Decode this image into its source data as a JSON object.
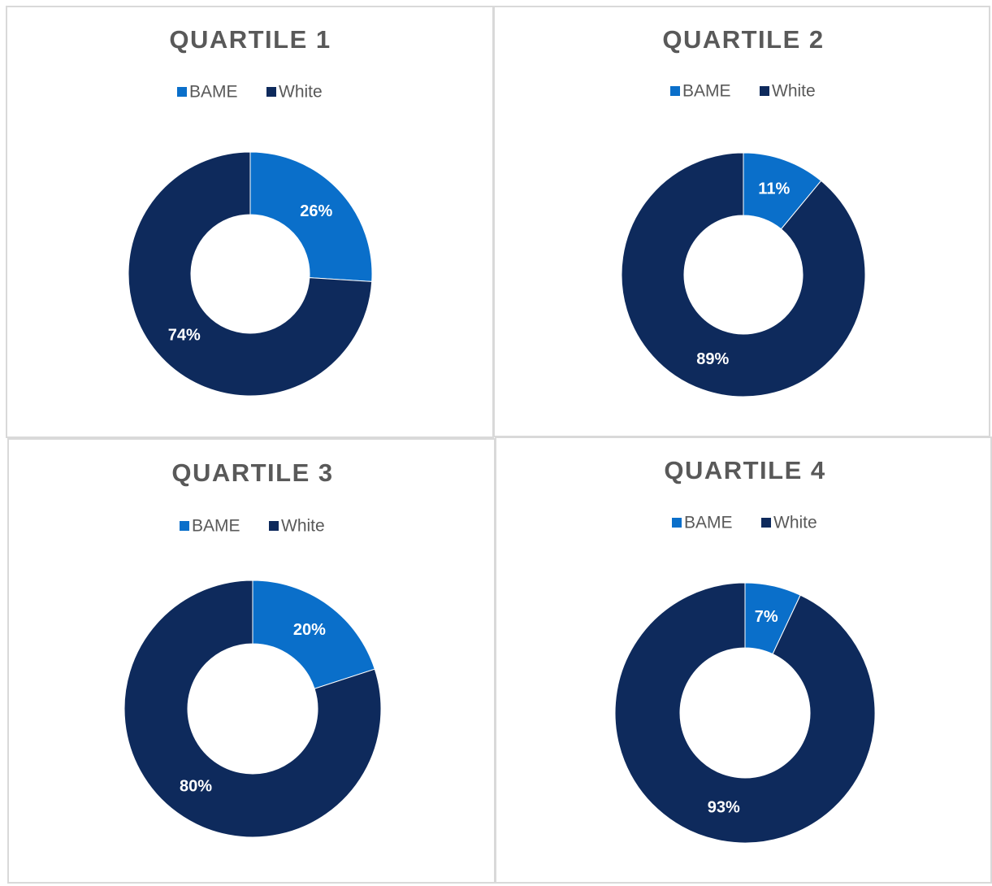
{
  "chart_data": [
    {
      "type": "pie",
      "donut": true,
      "title": "QUARTILE 1",
      "categories": [
        "BAME",
        "White"
      ],
      "values": [
        26,
        74
      ],
      "value_labels": [
        "26%",
        "74%"
      ],
      "colors": [
        "#0a6fca",
        "#0e2a5c"
      ],
      "legend": "top"
    },
    {
      "type": "pie",
      "donut": true,
      "title": "QUARTILE 2",
      "categories": [
        "BAME",
        "White"
      ],
      "values": [
        11,
        89
      ],
      "value_labels": [
        "11%",
        "89%"
      ],
      "colors": [
        "#0a6fca",
        "#0e2a5c"
      ],
      "legend": "top"
    },
    {
      "type": "pie",
      "donut": true,
      "title": "QUARTILE 3",
      "categories": [
        "BAME",
        "White"
      ],
      "values": [
        20,
        80
      ],
      "value_labels": [
        "20%",
        "80%"
      ],
      "colors": [
        "#0a6fca",
        "#0e2a5c"
      ],
      "legend": "top"
    },
    {
      "type": "pie",
      "donut": true,
      "title": "QUARTILE 4",
      "categories": [
        "BAME",
        "White"
      ],
      "values": [
        7,
        93
      ],
      "value_labels": [
        "7%",
        "93%"
      ],
      "colors": [
        "#0a6fca",
        "#0e2a5c"
      ],
      "legend": "top"
    }
  ]
}
